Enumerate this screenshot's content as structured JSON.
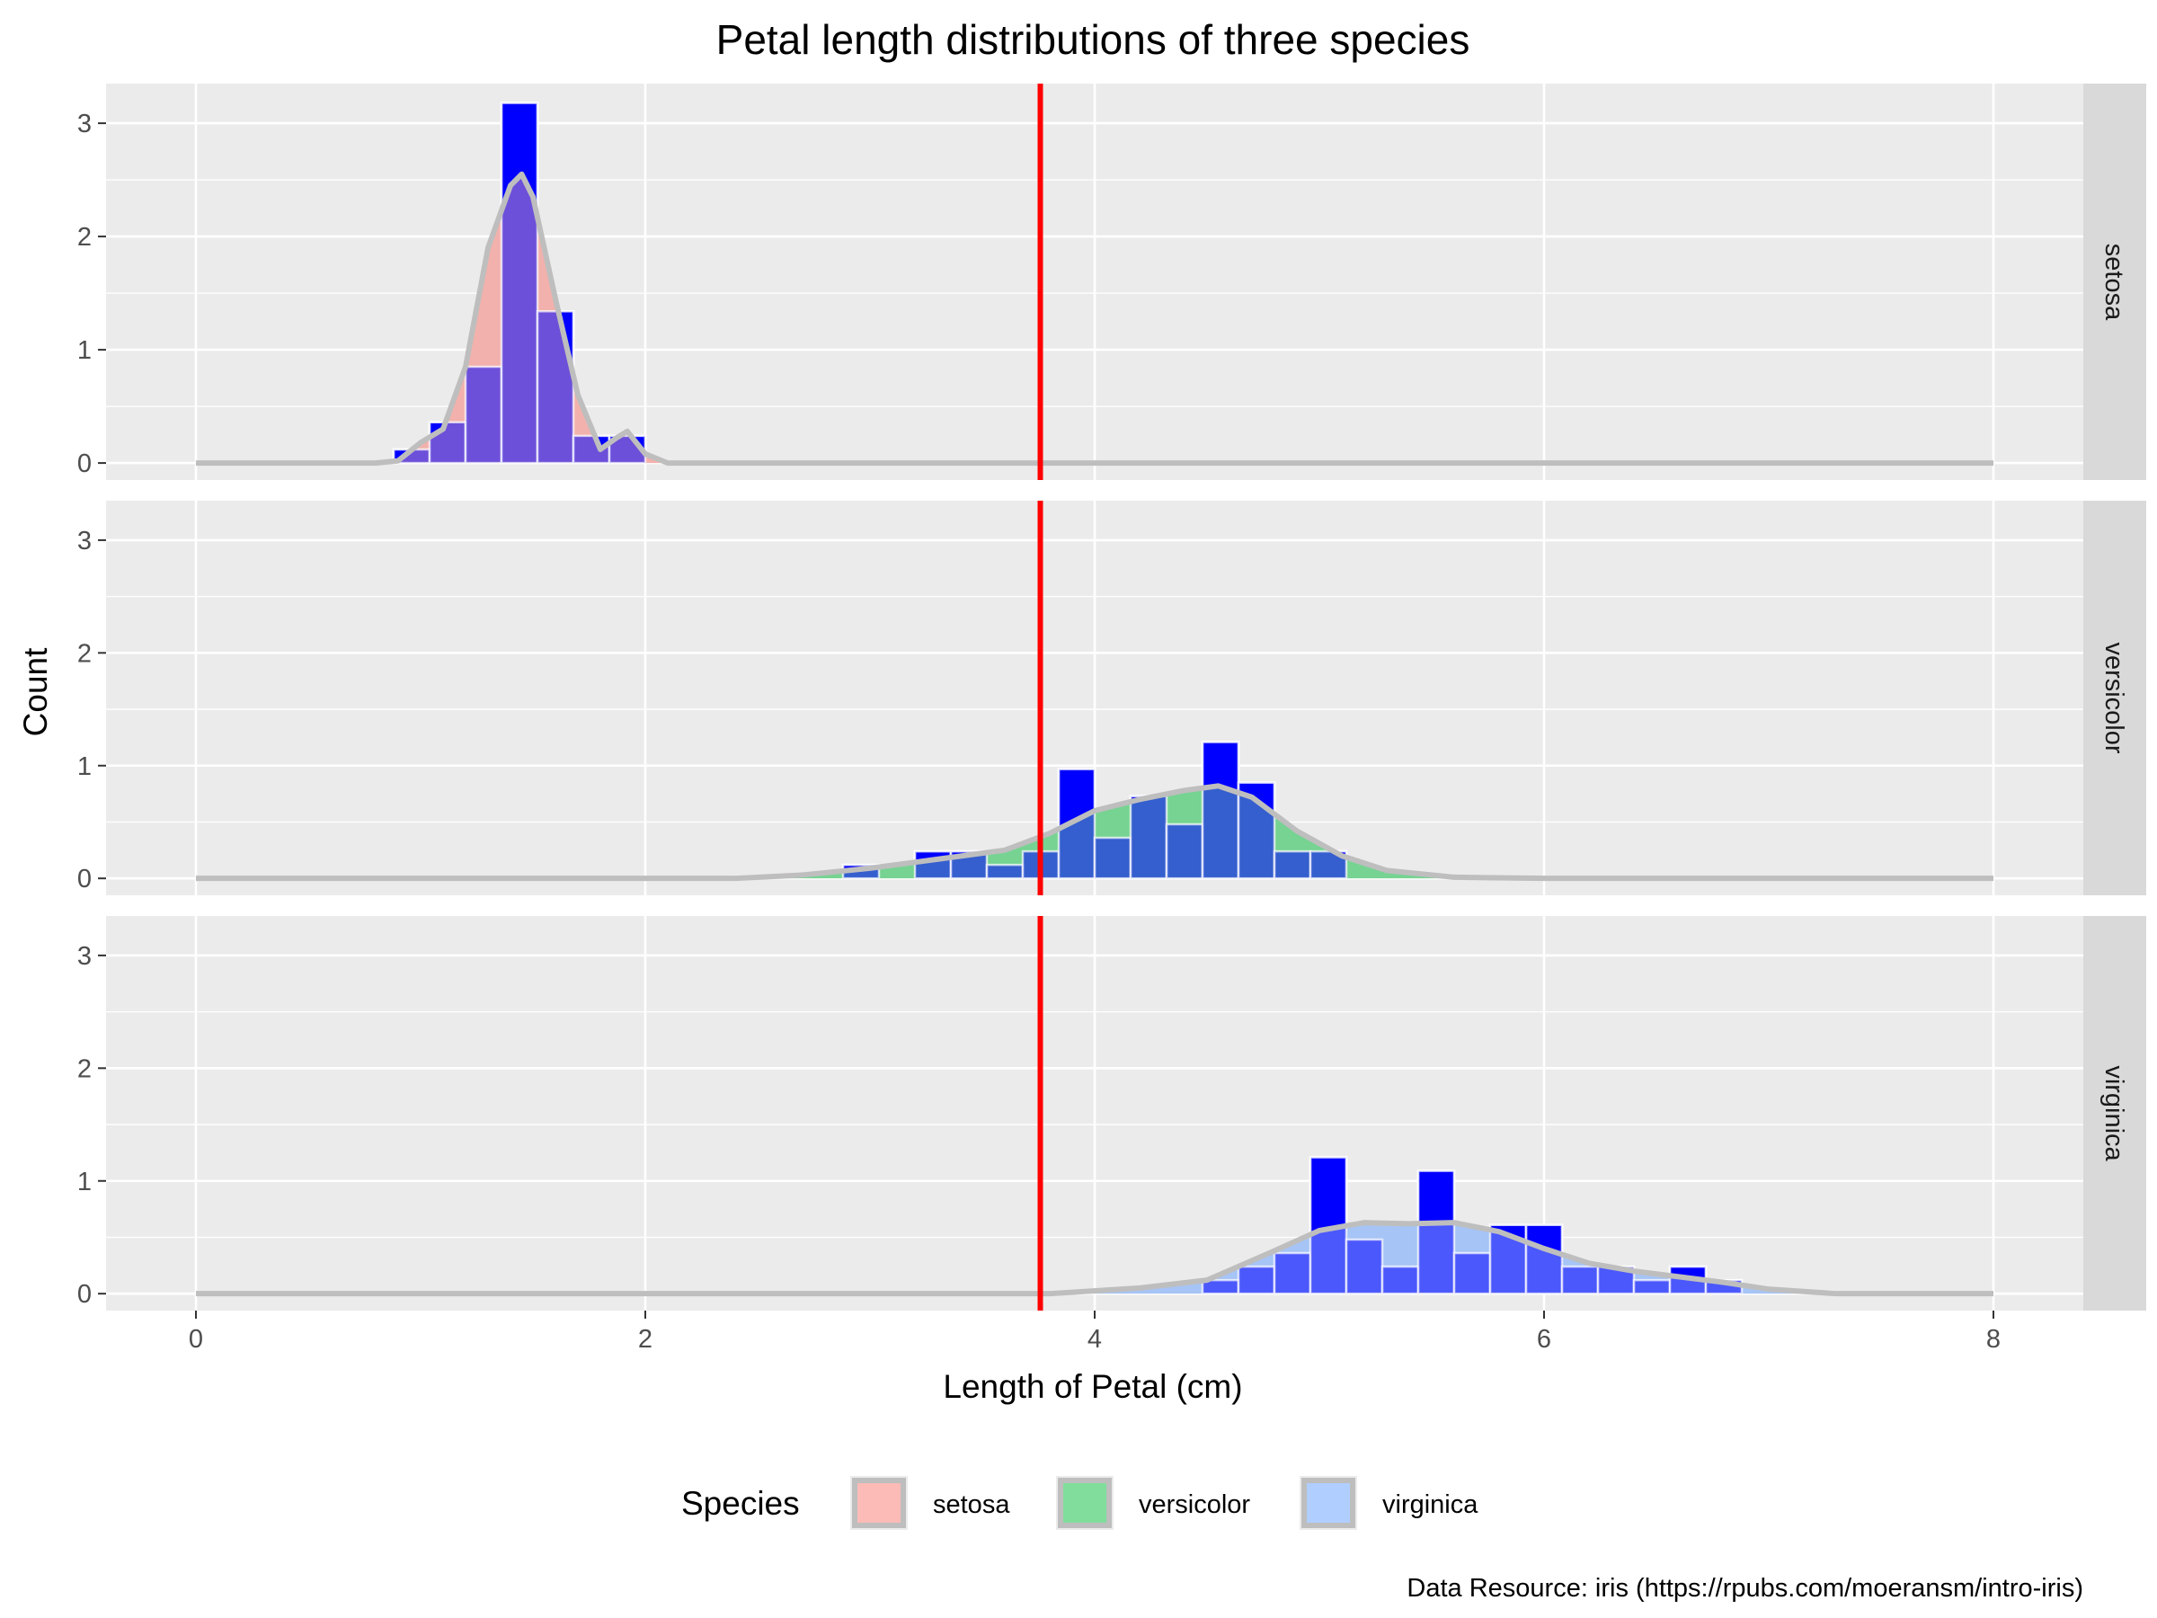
{
  "chart_data": {
    "type": "bar",
    "title": "Petal length distributions of three species",
    "xlabel": "Length of Petal (cm)",
    "ylabel": "Count",
    "xlim": [
      -0.4,
      8.4
    ],
    "ylim": [
      -0.15,
      3.35
    ],
    "x_ticks": [
      0,
      2,
      4,
      6,
      8
    ],
    "y_ticks": [
      0,
      1,
      2,
      3
    ],
    "bin_width": 0.16,
    "reference_line": {
      "x": 3.758,
      "color": "#ff0000"
    },
    "density_color": "#bebebe",
    "bar_fill_solid": "#0000ff",
    "bar_border": "#ffffff",
    "panel_background": "#ebebeb",
    "strip_background": "#d9d9d9",
    "grid": true,
    "legend_position": "bottom",
    "legend": {
      "title": "Species",
      "entries": [
        "setosa",
        "versicolor",
        "virginica"
      ]
    },
    "caption": "Data Resource: iris (https://rpubs.com/moeransm/intro-iris)",
    "series": [
      {
        "name": "setosa",
        "color": "#f8766d",
        "bins": [
          {
            "x": 0.96,
            "y": 0.12
          },
          {
            "x": 1.12,
            "y": 0.36
          },
          {
            "x": 1.28,
            "y": 0.85
          },
          {
            "x": 1.44,
            "y": 3.18
          },
          {
            "x": 1.6,
            "y": 1.34
          },
          {
            "x": 1.76,
            "y": 0.24
          },
          {
            "x": 1.92,
            "y": 0.24
          }
        ],
        "density": [
          [
            0,
            0
          ],
          [
            0.8,
            0
          ],
          [
            0.9,
            0.02
          ],
          [
            1.0,
            0.18
          ],
          [
            1.1,
            0.3
          ],
          [
            1.2,
            0.85
          ],
          [
            1.3,
            1.9
          ],
          [
            1.4,
            2.45
          ],
          [
            1.45,
            2.55
          ],
          [
            1.5,
            2.35
          ],
          [
            1.6,
            1.45
          ],
          [
            1.7,
            0.6
          ],
          [
            1.8,
            0.12
          ],
          [
            1.87,
            0.22
          ],
          [
            1.92,
            0.28
          ],
          [
            2.0,
            0.08
          ],
          [
            2.1,
            0
          ],
          [
            8,
            0
          ]
        ]
      },
      {
        "name": "versicolor",
        "color": "#00ba38",
        "bins": [
          {
            "x": 2.96,
            "y": 0.12
          },
          {
            "x": 3.28,
            "y": 0.24
          },
          {
            "x": 3.44,
            "y": 0.24
          },
          {
            "x": 3.6,
            "y": 0.12
          },
          {
            "x": 3.76,
            "y": 0.24
          },
          {
            "x": 3.92,
            "y": 0.97
          },
          {
            "x": 4.08,
            "y": 0.36
          },
          {
            "x": 4.24,
            "y": 0.73
          },
          {
            "x": 4.4,
            "y": 0.48
          },
          {
            "x": 4.56,
            "y": 1.21
          },
          {
            "x": 4.72,
            "y": 0.85
          },
          {
            "x": 4.88,
            "y": 0.24
          },
          {
            "x": 5.04,
            "y": 0.24
          }
        ],
        "density": [
          [
            0,
            0
          ],
          [
            2.4,
            0
          ],
          [
            2.7,
            0.03
          ],
          [
            3.0,
            0.09
          ],
          [
            3.3,
            0.17
          ],
          [
            3.6,
            0.25
          ],
          [
            3.8,
            0.4
          ],
          [
            4.0,
            0.6
          ],
          [
            4.2,
            0.7
          ],
          [
            4.4,
            0.78
          ],
          [
            4.55,
            0.82
          ],
          [
            4.7,
            0.72
          ],
          [
            4.9,
            0.42
          ],
          [
            5.1,
            0.2
          ],
          [
            5.3,
            0.07
          ],
          [
            5.6,
            0.01
          ],
          [
            6.0,
            0
          ],
          [
            8,
            0
          ]
        ]
      },
      {
        "name": "virginica",
        "color": "#619cff",
        "bins": [
          {
            "x": 4.56,
            "y": 0.12
          },
          {
            "x": 4.72,
            "y": 0.24
          },
          {
            "x": 4.88,
            "y": 0.36
          },
          {
            "x": 5.04,
            "y": 1.21
          },
          {
            "x": 5.2,
            "y": 0.48
          },
          {
            "x": 5.36,
            "y": 0.24
          },
          {
            "x": 5.52,
            "y": 1.09
          },
          {
            "x": 5.68,
            "y": 0.36
          },
          {
            "x": 5.84,
            "y": 0.61
          },
          {
            "x": 6.0,
            "y": 0.61
          },
          {
            "x": 6.16,
            "y": 0.24
          },
          {
            "x": 6.32,
            "y": 0.24
          },
          {
            "x": 6.48,
            "y": 0.12
          },
          {
            "x": 6.64,
            "y": 0.24
          },
          {
            "x": 6.8,
            "y": 0.12
          }
        ],
        "density": [
          [
            0,
            0
          ],
          [
            3.8,
            0
          ],
          [
            4.2,
            0.05
          ],
          [
            4.5,
            0.12
          ],
          [
            4.8,
            0.38
          ],
          [
            5.0,
            0.56
          ],
          [
            5.2,
            0.63
          ],
          [
            5.4,
            0.62
          ],
          [
            5.6,
            0.63
          ],
          [
            5.8,
            0.55
          ],
          [
            6.0,
            0.4
          ],
          [
            6.2,
            0.27
          ],
          [
            6.4,
            0.2
          ],
          [
            6.6,
            0.15
          ],
          [
            6.8,
            0.1
          ],
          [
            7.0,
            0.04
          ],
          [
            7.3,
            0
          ],
          [
            8,
            0
          ]
        ]
      }
    ]
  }
}
